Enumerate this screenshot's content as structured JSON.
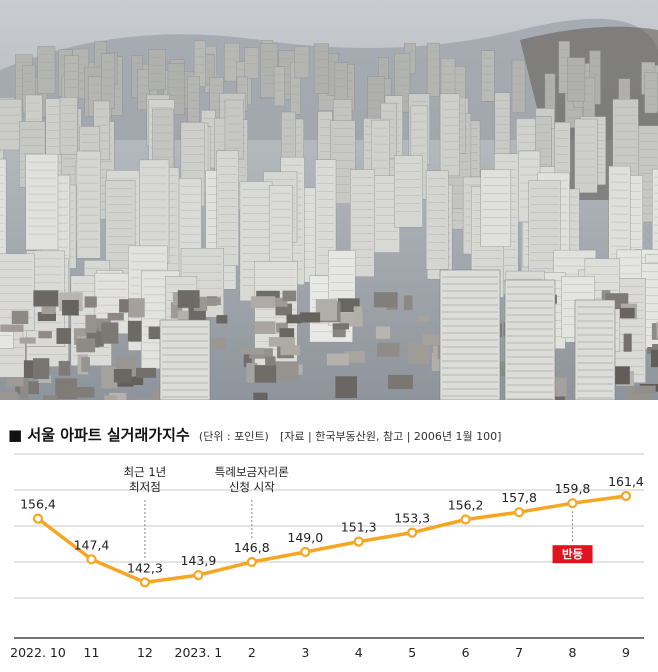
{
  "photo": {
    "icon": "city-apartments-photo",
    "sky_color": "#c9cdd1",
    "haze_color": "#8e949b",
    "building_color": "#d9d9d6"
  },
  "chart_data": {
    "type": "line",
    "title": "서울 아파트 실거래가지수",
    "unit_note": "(단위 : 포인트)",
    "source_note": "[자료 | 한국부동산원, 참고 | 2006년 1월 100]",
    "categories": [
      "2022. 10",
      "11",
      "12",
      "2023. 1",
      "2",
      "3",
      "4",
      "5",
      "6",
      "7",
      "8",
      "9"
    ],
    "series": [
      {
        "values": [
          156.4,
          147.4,
          142.3,
          143.9,
          146.8,
          149.0,
          151.3,
          153.3,
          156.2,
          157.8,
          159.8,
          161.4
        ]
      }
    ],
    "value_labels": [
      "156,4",
      "147,4",
      "142,3",
      "143,9",
      "146,8",
      "149,0",
      "151,3",
      "153,3",
      "156,2",
      "157,8",
      "159,8",
      "161,4"
    ],
    "annotations": [
      {
        "index": 2,
        "lines": [
          "최근 1년",
          "최저점"
        ],
        "position": "above"
      },
      {
        "index": 4,
        "lines": [
          "특례보금자리론",
          "신청 시작"
        ],
        "position": "above"
      },
      {
        "index": 10,
        "text": "반등",
        "position": "below",
        "badge_color": "#e0141e"
      }
    ],
    "ylim": [
      130,
      172
    ],
    "grid": true,
    "line_color": "#f5a623",
    "marker_fill": "#ffffff"
  }
}
